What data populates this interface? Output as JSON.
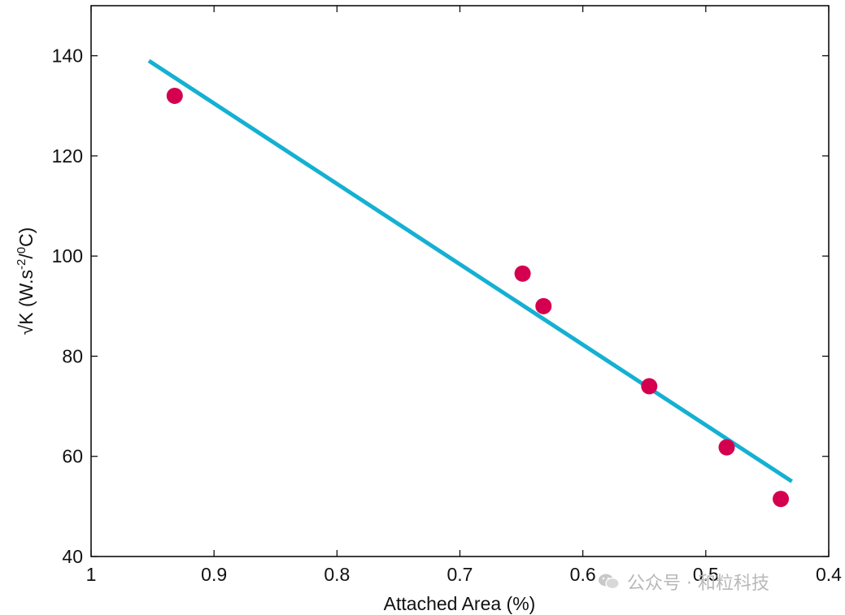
{
  "chart_data": {
    "type": "scatter",
    "xlabel": "Attached Area (%)",
    "ylabel": "√K (W.s",
    "ylabel_sup1": "-2",
    "ylabel_mid": "/",
    "ylabel_sup2": "0",
    "ylabel_end": "C)",
    "xlim": [
      1.0,
      0.4
    ],
    "x_reversed": true,
    "ylim": [
      40,
      150
    ],
    "xticks": [
      1,
      0.9,
      0.8,
      0.7,
      0.6,
      0.5,
      0.4
    ],
    "xtick_labels": [
      "1",
      "0.9",
      "0.8",
      "0.7",
      "0.6",
      "0.5",
      "0.4"
    ],
    "yticks": [
      40,
      60,
      80,
      100,
      120,
      140
    ],
    "ytick_labels": [
      "40",
      "60",
      "80",
      "100",
      "120",
      "140"
    ],
    "grid": false,
    "series": [
      {
        "kind": "points",
        "color": "#d4004f",
        "x": [
          0.932,
          0.649,
          0.632,
          0.546,
          0.483,
          0.439
        ],
        "y": [
          132,
          96.5,
          90,
          74,
          61.8,
          51.5
        ]
      },
      {
        "kind": "fit-line",
        "color": "#15b0d2",
        "x": [
          0.953,
          0.43
        ],
        "y": [
          139,
          55
        ]
      }
    ]
  },
  "watermark": {
    "text": "公众号 · 和粒科技",
    "icon": "wechat-icon"
  }
}
